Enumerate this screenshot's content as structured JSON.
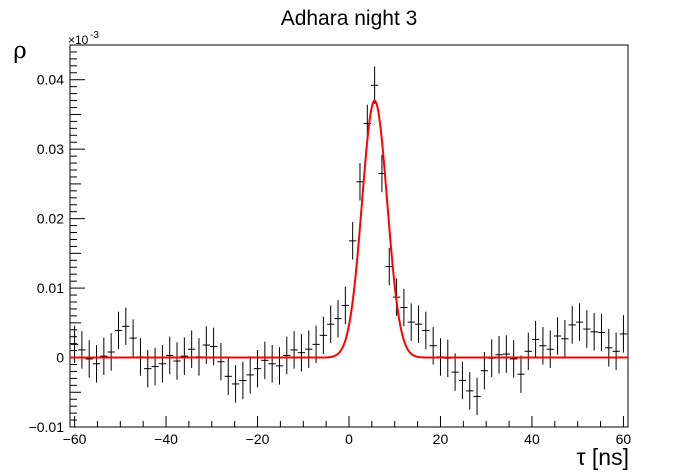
{
  "chart_data": {
    "type": "scatter",
    "title": "Adhara night 3",
    "xlabel": "τ [ns]",
    "ylabel": "ρ",
    "y_multiplier": "×10",
    "y_multiplier_exp": "-3",
    "xlim": [
      -61,
      61
    ],
    "ylim": [
      -0.01,
      0.045
    ],
    "x_major_ticks": [
      -60,
      -40,
      -20,
      0,
      20,
      40,
      60
    ],
    "x_tick_labels": [
      "−60",
      "−40",
      "−20",
      "0",
      "20",
      "40",
      "60"
    ],
    "y_major_ticks": [
      -0.01,
      0,
      0.01,
      0.02,
      0.03,
      0.04
    ],
    "y_tick_labels": [
      "−0.01",
      "0",
      "0.01",
      "0.02",
      "0.03",
      "0.04"
    ],
    "grid": false,
    "legend": "none",
    "series": [
      {
        "kind": "points_with_errors",
        "color": "#000000",
        "bin_half_width": 0.8,
        "error": 0.0027,
        "x": [
          -60.0,
          -58.4,
          -56.8,
          -55.2,
          -53.6,
          -52.0,
          -50.4,
          -48.8,
          -47.2,
          -45.6,
          -44.0,
          -42.4,
          -40.8,
          -39.2,
          -37.6,
          -36.0,
          -34.4,
          -32.8,
          -31.2,
          -29.6,
          -28.0,
          -26.4,
          -24.8,
          -23.2,
          -21.6,
          -20.0,
          -18.4,
          -16.8,
          -15.2,
          -13.6,
          -12.0,
          -10.4,
          -8.8,
          -7.2,
          -5.6,
          -4.0,
          -2.4,
          -0.8,
          0.8,
          2.4,
          4.0,
          5.6,
          7.2,
          8.8,
          10.4,
          12.0,
          13.6,
          15.2,
          16.8,
          18.4,
          20.0,
          21.6,
          23.2,
          24.8,
          26.4,
          28.0,
          29.6,
          31.2,
          32.8,
          34.4,
          36.0,
          37.6,
          39.2,
          40.8,
          42.4,
          44.0,
          45.6,
          47.2,
          48.8,
          50.4,
          52.0,
          53.6,
          55.2,
          56.8,
          58.4,
          60.0
        ],
        "y": [
          0.0019,
          0.0011,
          -0.0002,
          -0.0009,
          0.0002,
          0.0008,
          0.0039,
          0.0045,
          0.0028,
          0.0001,
          -0.0016,
          -0.0013,
          -0.0009,
          0.0003,
          -0.0005,
          0.0002,
          0.0012,
          0.0001,
          0.0018,
          0.0016,
          -0.0006,
          -0.0027,
          -0.0038,
          -0.0033,
          -0.0025,
          -0.0016,
          -0.0004,
          -0.0009,
          -0.0012,
          0.0003,
          0.0011,
          0.0007,
          0.0012,
          0.0019,
          0.0032,
          0.0048,
          0.0056,
          0.0075,
          0.0168,
          0.0253,
          0.0337,
          0.0392,
          0.0265,
          0.0131,
          0.0087,
          0.0072,
          0.0051,
          0.0048,
          0.0039,
          0.0017,
          0.0001,
          -0.0001,
          -0.0021,
          -0.0033,
          -0.0048,
          -0.0056,
          -0.0019,
          -0.0001,
          0.0004,
          0.0005,
          -0.0002,
          -0.0024,
          0.0009,
          0.0026,
          0.0017,
          0.0012,
          0.0031,
          0.0027,
          0.0047,
          0.0051,
          0.0041,
          0.0037,
          0.0036,
          0.0014,
          0.0009,
          0.0034
        ]
      },
      {
        "kind": "fit_curve",
        "color": "#ff0000",
        "function": "gaussian",
        "amplitude": 0.037,
        "mean": 5.6,
        "sigma": 2.75,
        "range": [
          -61,
          61
        ]
      }
    ]
  }
}
